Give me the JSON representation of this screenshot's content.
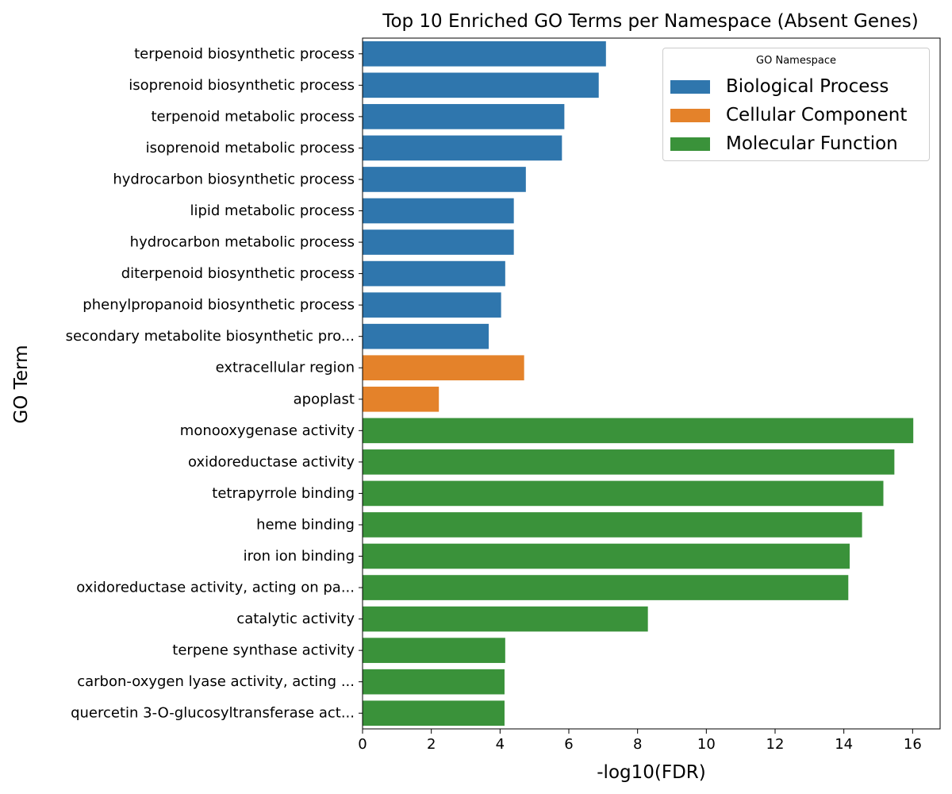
{
  "chart_data": {
    "type": "bar",
    "orientation": "horizontal",
    "title": "Top 10 Enriched GO Terms per Namespace (Absent Genes)",
    "xlabel": "-log10(FDR)",
    "ylabel": "GO Term",
    "xlim": [
      0,
      16.8
    ],
    "xticks": [
      0,
      2,
      4,
      6,
      8,
      10,
      12,
      14,
      16
    ],
    "grid": false,
    "legend": {
      "title": "GO Namespace",
      "placement": "top-right",
      "entries": [
        {
          "name": "Biological Process",
          "color": "#2f76ad"
        },
        {
          "name": "Cellular Component",
          "color": "#e4822a"
        },
        {
          "name": "Molecular Function",
          "color": "#3a923a"
        }
      ]
    },
    "categories": [
      "terpenoid biosynthetic process",
      "isoprenoid biosynthetic process",
      "terpenoid metabolic process",
      "isoprenoid metabolic process",
      "hydrocarbon biosynthetic process",
      "lipid metabolic process",
      "hydrocarbon metabolic process",
      "diterpenoid biosynthetic process",
      "phenylpropanoid biosynthetic process",
      "secondary metabolite biosynthetic pro...",
      "extracellular region",
      "apoplast",
      "monooxygenase activity",
      "oxidoreductase activity",
      "tetrapyrrole binding",
      "heme binding",
      "iron ion binding",
      "oxidoreductase activity, acting on pa...",
      "catalytic activity",
      "terpene synthase activity",
      "carbon-oxygen lyase activity, acting ...",
      "quercetin 3-O-glucosyltransferase act..."
    ],
    "values": [
      7.08,
      6.87,
      5.87,
      5.8,
      4.75,
      4.4,
      4.4,
      4.15,
      4.03,
      3.67,
      4.7,
      2.22,
      16.02,
      15.47,
      15.15,
      14.53,
      14.17,
      14.13,
      8.3,
      4.15,
      4.13,
      4.13
    ],
    "namespaces": [
      "Biological Process",
      "Biological Process",
      "Biological Process",
      "Biological Process",
      "Biological Process",
      "Biological Process",
      "Biological Process",
      "Biological Process",
      "Biological Process",
      "Biological Process",
      "Cellular Component",
      "Cellular Component",
      "Molecular Function",
      "Molecular Function",
      "Molecular Function",
      "Molecular Function",
      "Molecular Function",
      "Molecular Function",
      "Molecular Function",
      "Molecular Function",
      "Molecular Function",
      "Molecular Function"
    ]
  }
}
